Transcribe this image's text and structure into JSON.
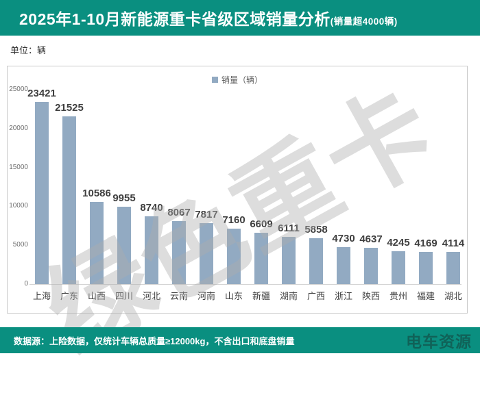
{
  "header": {
    "title": "2025年1-10月新能源重卡省级区域销量分析",
    "title_suffix": "(销量超4000辆)"
  },
  "unit_label": "单位：辆",
  "legend": {
    "label": "销量（辆）"
  },
  "watermark": "绿色重卡",
  "footer": {
    "note": "数据源：上险数据，仅统计车辆总质量≥12000kg，不含出口和底盘销量",
    "logo": "电车资源"
  },
  "colors": {
    "banner_teal": "#0a8f80",
    "bar_blue": "#92aac2",
    "value_label": "#3f3f3f",
    "watermark_gray": "#adadad"
  },
  "chart_data": {
    "type": "bar",
    "title": "2025年1-10月新能源重卡省级区域销量分析(销量超4000辆)",
    "legend_entries": [
      "销量（辆）"
    ],
    "legend_position": "top-center",
    "grid": false,
    "categories": [
      "上海",
      "广东",
      "山西",
      "四川",
      "河北",
      "云南",
      "河南",
      "山东",
      "新疆",
      "湖南",
      "广西",
      "浙江",
      "陕西",
      "贵州",
      "福建",
      "湖北"
    ],
    "values": [
      23421,
      21525,
      10586,
      9955,
      8740,
      8067,
      7817,
      7160,
      6609,
      6111,
      5858,
      4730,
      4637,
      4245,
      4169,
      4114
    ],
    "xlabel": "",
    "ylabel": "",
    "ylim": [
      0,
      25000
    ],
    "yticks": [
      0,
      5000,
      10000,
      15000,
      20000,
      25000
    ]
  }
}
